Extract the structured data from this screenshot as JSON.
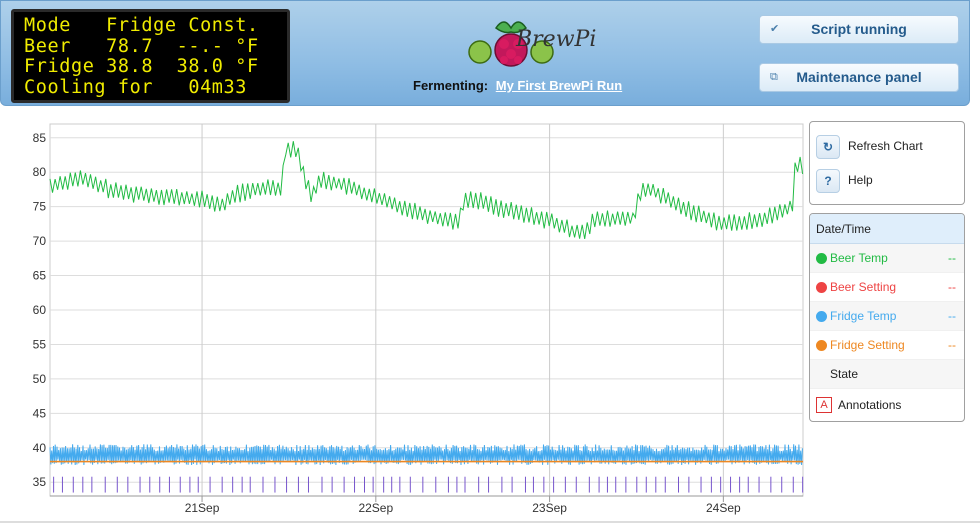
{
  "lcd": {
    "lines": [
      "Mode   Fridge Const.",
      "Beer   78.7  --.- °F",
      "Fridge 38.8  38.0 °F",
      "Cooling for   04m33"
    ]
  },
  "header": {
    "brand": "BrewPi",
    "fermenting_label": "Fermenting:",
    "beer_name": "My First BrewPi Run",
    "script_button": "Script running",
    "maintenance_button": "Maintenance panel",
    "script_icon": "check-icon",
    "maintenance_icon": "window-icon"
  },
  "controls": {
    "refresh_label": "Refresh Chart",
    "help_label": "Help",
    "refresh_icon": "refresh-icon",
    "help_icon": "?"
  },
  "legend": {
    "header": "Date/Time",
    "items": [
      {
        "label": "Beer Temp",
        "value": "--",
        "color": "#22bb44"
      },
      {
        "label": "Beer Setting",
        "value": "--",
        "color": "#ee4444"
      },
      {
        "label": "Fridge Temp",
        "value": "--",
        "color": "#44aaee"
      },
      {
        "label": "Fridge Setting",
        "value": "--",
        "color": "#ee8822"
      },
      {
        "label": "State",
        "value": "",
        "color": ""
      }
    ],
    "annotations_icon": "A",
    "annotations_label": "Annotations"
  },
  "chart_data": {
    "type": "line",
    "x_unit": "day",
    "x_ticks": [
      "21Sep",
      "22Sep",
      "23Sep",
      "24Sep"
    ],
    "xlim": [
      "20 Sep 15:00",
      "24 Sep 23:00"
    ],
    "ylim": [
      33,
      87
    ],
    "y_ticks": [
      35,
      40,
      45,
      50,
      55,
      60,
      65,
      70,
      75,
      80,
      85
    ],
    "grid": true,
    "series": [
      {
        "name": "Beer Temp",
        "color": "#22bb44",
        "points": [
          [
            "20 Sep 15:00",
            78
          ],
          [
            "20 Sep 19:00",
            79.2
          ],
          [
            "21 Sep 00:00",
            77.2
          ],
          [
            "21 Sep 06:00",
            76.6
          ],
          [
            "21 Sep 12:00",
            76.0
          ],
          [
            "21 Sep 15:00",
            75.2
          ],
          [
            "21 Sep 16:30",
            76.8
          ],
          [
            "21 Sep 22:00",
            78.0
          ],
          [
            "21 Sep 23:00",
            77.5
          ],
          [
            "21 Sep 23:30",
            83.5
          ],
          [
            "22 Sep 01:00",
            83.5
          ],
          [
            "22 Sep 03:00",
            76.5
          ],
          [
            "22 Sep 04:30",
            79.0
          ],
          [
            "22 Sep 08:00",
            78.0
          ],
          [
            "22 Sep 14:00",
            75.5
          ],
          [
            "22 Sep 20:00",
            73.5
          ],
          [
            "22 Sep 23:30",
            72.8
          ],
          [
            "23 Sep 00:00",
            75.8
          ],
          [
            "23 Sep 02:00",
            76.0
          ],
          [
            "23 Sep 06:00",
            74.5
          ],
          [
            "23 Sep 12:00",
            73.0
          ],
          [
            "23 Sep 15:00",
            71.5
          ],
          [
            "23 Sep 17:00",
            71.5
          ],
          [
            "23 Sep 18:00",
            73.0
          ],
          [
            "23 Sep 22:00",
            73.3
          ],
          [
            "23 Sep 23:30",
            73.3
          ],
          [
            "24 Sep 00:30",
            77.0
          ],
          [
            "24 Sep 02:00",
            77.5
          ],
          [
            "24 Sep 06:00",
            75.0
          ],
          [
            "24 Sep 12:00",
            72.5
          ],
          [
            "24 Sep 17:00",
            73.0
          ],
          [
            "24 Sep 21:30",
            75.0
          ],
          [
            "24 Sep 22:00",
            81.5
          ],
          [
            "24 Sep 23:00",
            81.0
          ]
        ]
      },
      {
        "name": "Beer Setting",
        "color": "#ee4444",
        "points": []
      },
      {
        "name": "Fridge Temp",
        "color": "#44aaee",
        "mean": 38.8,
        "range": [
          37.5,
          40.5
        ]
      },
      {
        "name": "Fridge Setting",
        "color": "#ee8822",
        "constant": 38.0
      }
    ],
    "state": {
      "name": "State",
      "color": "#7755cc",
      "y": [
        33.5,
        35.8
      ]
    }
  }
}
